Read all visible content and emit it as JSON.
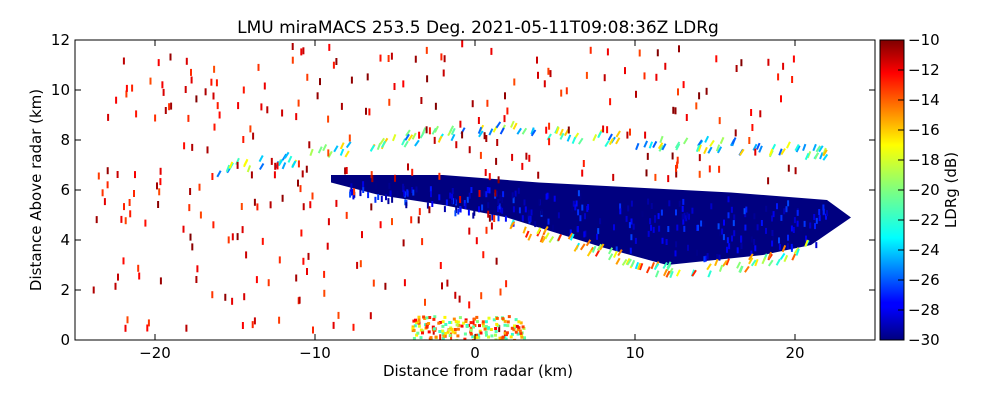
{
  "chart_data": {
    "type": "heatmap",
    "title": "LMU miraMACS 253.5 Deg. 2021-05-11T09:08:36Z  LDRg",
    "xlabel": "Distance from radar (km)",
    "ylabel": "Distance Above radar  (km)",
    "xlim": [
      -25,
      25
    ],
    "ylim": [
      0,
      12
    ],
    "x_ticks": [
      -20,
      -10,
      0,
      10,
      20
    ],
    "x_tick_labels": [
      "−20",
      "−10",
      "0",
      "10",
      "20"
    ],
    "y_ticks": [
      0,
      2,
      4,
      6,
      8,
      10,
      12
    ],
    "y_tick_labels": [
      "0",
      "2",
      "4",
      "6",
      "8",
      "10",
      "12"
    ],
    "colorbar": {
      "label": "LDRg (dB)",
      "range": [
        -30,
        -10
      ],
      "ticks": [
        -30,
        -28,
        -26,
        -24,
        -22,
        -20,
        -18,
        -16,
        -14,
        -12,
        -10
      ],
      "tick_labels": [
        "−30",
        "−28",
        "−26",
        "−24",
        "−22",
        "−20",
        "−18",
        "−16",
        "−14",
        "−12",
        "−10"
      ],
      "colormap": "jet"
    },
    "features": [
      {
        "name": "main-cloud-layer",
        "ldr_db": -30,
        "outline": [
          [
            -9,
            6.6
          ],
          [
            -2,
            6.6
          ],
          [
            4,
            6.3
          ],
          [
            10,
            6.1
          ],
          [
            16,
            5.9
          ],
          [
            22,
            5.6
          ],
          [
            23.5,
            4.9
          ],
          [
            21,
            3.8
          ],
          [
            18,
            3.4
          ],
          [
            12,
            3.0
          ],
          [
            8,
            3.7
          ],
          [
            5,
            4.3
          ],
          [
            2,
            4.9
          ],
          [
            -2,
            5.4
          ],
          [
            -6,
            5.8
          ],
          [
            -9,
            6.3
          ]
        ]
      },
      {
        "name": "cloud-top-edge",
        "ldr_db": -21,
        "path": [
          [
            -16,
            7.0
          ],
          [
            -12,
            7.3
          ],
          [
            -8,
            7.8
          ],
          [
            -4,
            8.2
          ],
          [
            0,
            8.6
          ],
          [
            4,
            8.5
          ],
          [
            8,
            8.2
          ],
          [
            12,
            8.0
          ],
          [
            16,
            7.9
          ],
          [
            20,
            7.8
          ],
          [
            22,
            7.5
          ]
        ]
      },
      {
        "name": "cloud-base-edge",
        "ldr_db": -18,
        "path": [
          [
            2,
            4.7
          ],
          [
            5,
            4.3
          ],
          [
            8,
            3.7
          ],
          [
            11,
            3.0
          ],
          [
            14,
            2.9
          ],
          [
            18,
            3.3
          ],
          [
            21,
            3.9
          ]
        ]
      },
      {
        "name": "upper-noise",
        "ldr_db": -10,
        "x_range": [
          -23,
          20
        ],
        "y_range": [
          6.5,
          12
        ]
      },
      {
        "name": "near-ground-clutter",
        "ldr_db": -12,
        "x_range": [
          -4,
          3
        ],
        "y_range": [
          0,
          1
        ]
      },
      {
        "name": "sparse-noise",
        "ldr_db": -10,
        "x_range": [
          -24,
          2
        ],
        "y_range": [
          0,
          7
        ]
      }
    ]
  }
}
